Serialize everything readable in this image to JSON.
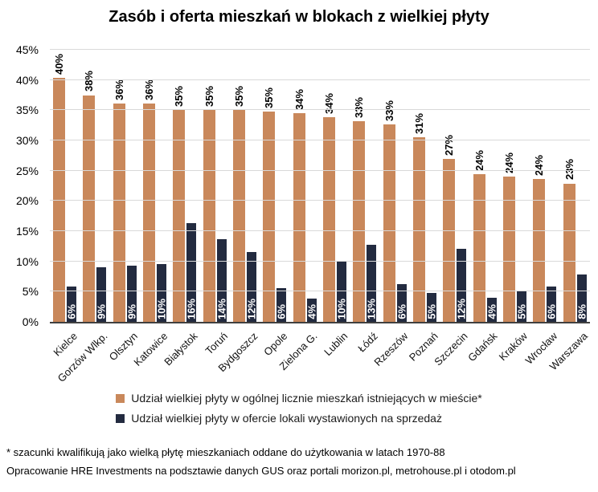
{
  "title": "Zasób i oferta mieszkań w blokach z wielkiej płyty",
  "colors": {
    "background": "#ffffff",
    "grid": "#d9d9d9",
    "axis_line": "#404040",
    "series_stock": "#c9885b",
    "series_offer": "#232b40",
    "label_on_dark": "#ffffff",
    "text": "#000000"
  },
  "chart_data": {
    "type": "bar",
    "title": "Zasób i oferta mieszkań w blokach z wielkiej płyty",
    "xlabel": "",
    "ylabel": "",
    "ylim": [
      0,
      45
    ],
    "grid": true,
    "legend_position": "bottom",
    "yticks": [
      "0%",
      "5%",
      "10%",
      "15%",
      "20%",
      "25%",
      "30%",
      "35%",
      "40%",
      "45%"
    ],
    "categories": [
      "Kielce",
      "Gorzów Wlkp.",
      "Olsztyn",
      "Katowice",
      "Białystok",
      "Toruń",
      "Bydgoszcz",
      "Opole",
      "Zielona G.",
      "Lublin",
      "Łódź",
      "Rzeszów",
      "Poznań",
      "Szczecin",
      "Gdańsk",
      "Kraków",
      "Wrocław",
      "Warszawa"
    ],
    "series": [
      {
        "name": "Udział wielkiej płyty w ogólnej licznie mieszkań istniejących w mieście*",
        "color": "#c9885b",
        "values": [
          40,
          38,
          36,
          36,
          35,
          35,
          35,
          35,
          34,
          34,
          33,
          33,
          31,
          27,
          24,
          24,
          24,
          23
        ],
        "labels": [
          "40%",
          "38%",
          "36%",
          "36%",
          "35%",
          "35%",
          "35%",
          "35%",
          "34%",
          "34%",
          "33%",
          "33%",
          "31%",
          "27%",
          "24%",
          "24%",
          "24%",
          "23%"
        ],
        "bar_heights_pct": [
          40.4,
          37.5,
          36.1,
          36.1,
          35.0,
          35.1,
          35.0,
          34.8,
          34.5,
          33.8,
          33.2,
          32.6,
          30.5,
          27.0,
          24.4,
          24.0,
          23.6,
          22.9
        ],
        "label_position": "above"
      },
      {
        "name": "Udział wielkiej płyty w ofercie lokali wystawionych na sprzedaż",
        "color": "#232b40",
        "values": [
          6,
          9,
          9,
          10,
          16,
          14,
          12,
          6,
          4,
          10,
          13,
          6,
          5,
          12,
          4,
          5,
          6,
          8
        ],
        "labels": [
          "6%",
          "9%",
          "9%",
          "10%",
          "16%",
          "14%",
          "12%",
          "6%",
          "4%",
          "10%",
          "13%",
          "6%",
          "5%",
          "12%",
          "4%",
          "5%",
          "6%",
          "8%"
        ],
        "bar_heights_pct": [
          5.8,
          9.0,
          9.3,
          9.6,
          16.3,
          13.7,
          11.6,
          5.6,
          3.9,
          10.0,
          12.7,
          6.3,
          4.8,
          12.1,
          4.0,
          5.0,
          5.8,
          7.8
        ],
        "label_position": "inside-bottom"
      }
    ]
  },
  "footnotes": {
    "line1": "* szacunki kwalifikują jako wielką płytę mieszkaniach oddane do użytkowania w latach 1970-88",
    "line2": "Opracowanie HRE Investments na podsztawie danych GUS oraz portali morizon.pl, metrohouse.pl i otodom.pl"
  }
}
